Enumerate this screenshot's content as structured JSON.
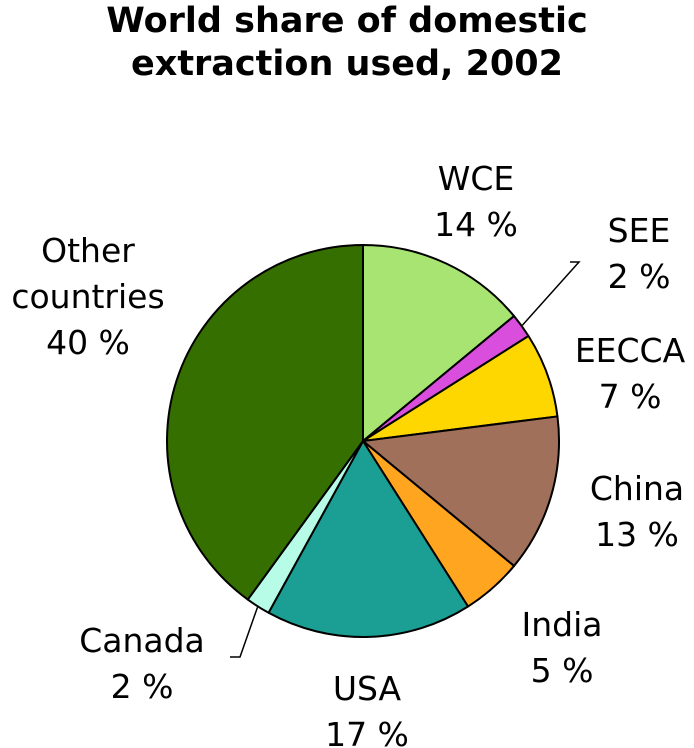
{
  "chart_data": {
    "type": "pie",
    "title": "World share of domestic extraction used, 2002",
    "title_lines": [
      "World share of domestic",
      "extraction used, 2002"
    ],
    "slices": [
      {
        "name": "WCE",
        "value": 14,
        "value_label": "14 %",
        "color": "#a8e472"
      },
      {
        "name": "SEE",
        "value": 2,
        "value_label": "2 %",
        "color": "#da4ede"
      },
      {
        "name": "EECCA",
        "value": 7,
        "value_label": "7 %",
        "color": "#ffd700"
      },
      {
        "name": "China",
        "value": 13,
        "value_label": "13 %",
        "color": "#a0705a"
      },
      {
        "name": "India",
        "value": 5,
        "value_label": "5 %",
        "color": "#ffa520"
      },
      {
        "name": "USA",
        "value": 17,
        "value_label": "17 %",
        "color": "#1b9e94"
      },
      {
        "name": "Canada",
        "value": 2,
        "value_label": "2 %",
        "color": "#b6fce6"
      },
      {
        "name": "Other countries",
        "name_lines": [
          "Other",
          "countries"
        ],
        "value": 40,
        "value_label": "40 %",
        "color": "#356f00"
      }
    ],
    "start_angle": "12 o'clock",
    "direction": "clockwise",
    "stroke_color": "#000000"
  }
}
